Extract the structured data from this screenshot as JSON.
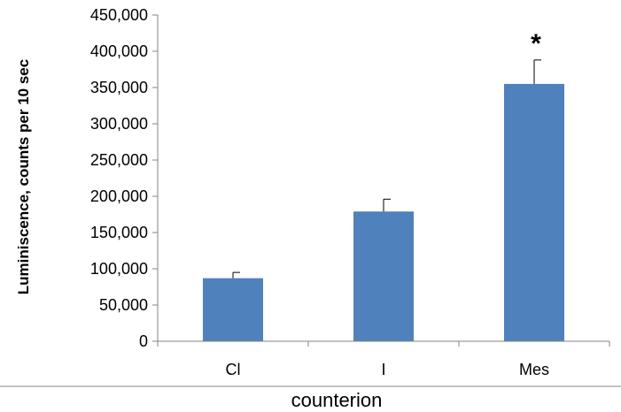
{
  "chart_data": {
    "type": "bar",
    "categories": [
      "Cl",
      "I",
      "Mes"
    ],
    "values": [
      87000,
      179000,
      355000
    ],
    "error_plus": [
      8000,
      17000,
      33000
    ],
    "annotations": [
      "",
      "",
      "*"
    ],
    "xlabel": "counterion",
    "ylabel": "Luminiscence, counts per 10 sec",
    "ylim": [
      0,
      450000
    ],
    "yticks": [
      0,
      50000,
      100000,
      150000,
      200000,
      250000,
      300000,
      350000,
      400000,
      450000
    ],
    "ytick_labels": [
      "0",
      "50,000",
      "100,000",
      "150,000",
      "200,000",
      "250,000",
      "300,000",
      "350,000",
      "400,000",
      "450,000"
    ],
    "bar_color": "#4f81bd",
    "grid": false,
    "legend": "none"
  }
}
